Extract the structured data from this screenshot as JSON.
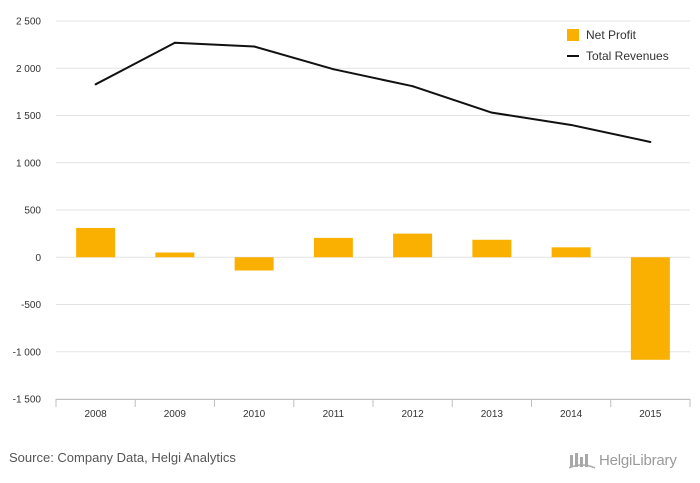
{
  "chart_data": {
    "type": "bar+line",
    "categories": [
      "2008",
      "2009",
      "2010",
      "2011",
      "2012",
      "2013",
      "2014",
      "2015"
    ],
    "series": [
      {
        "name": "Net Profit",
        "type": "bar",
        "color": "#f9b000",
        "values": [
          310,
          50,
          -140,
          205,
          250,
          185,
          105,
          -1085
        ]
      },
      {
        "name": "Total Revenues",
        "type": "line",
        "color": "#111111",
        "values": [
          1830,
          2270,
          2230,
          1990,
          1810,
          1530,
          1400,
          1220
        ]
      }
    ],
    "ylim": [
      -1500,
      2500
    ],
    "yticks": [
      -1500,
      -1000,
      -500,
      0,
      500,
      1000,
      1500,
      2000,
      2500
    ],
    "ytick_labels": [
      "-1 500",
      "-1 000",
      "-500",
      "0",
      "500",
      "1 000",
      "1 500",
      "2 000",
      "2 500"
    ],
    "grid": true,
    "legend_position": "top-right"
  },
  "footer": {
    "source": "Source: Company Data, Helgi Analytics",
    "brand": "HelgiLibrary"
  }
}
